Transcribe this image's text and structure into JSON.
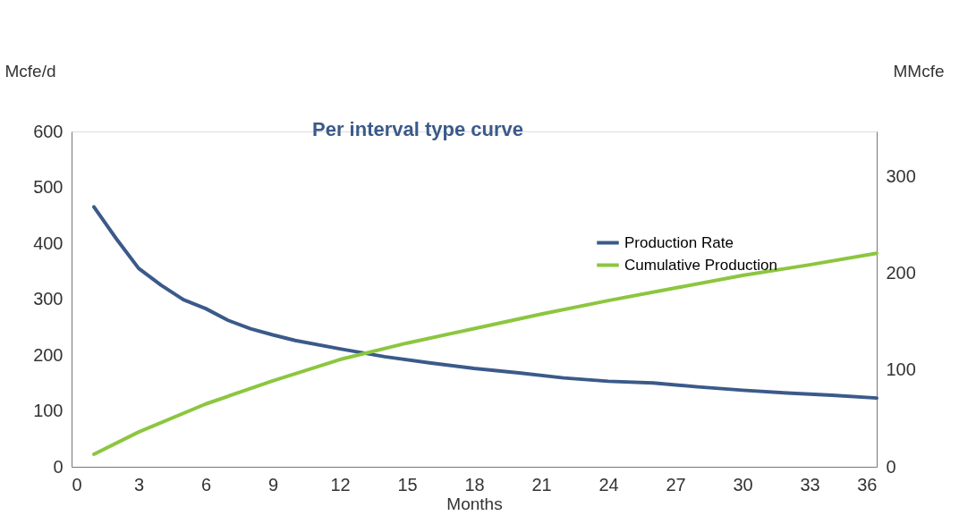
{
  "chart_data": {
    "type": "line",
    "title": "Per interval type curve",
    "xlabel": "Months",
    "ylabel": "Mcfe/d",
    "y2label": "MMcfe",
    "xlim": [
      0,
      36
    ],
    "xticks": [
      0,
      3,
      6,
      9,
      12,
      15,
      18,
      21,
      24,
      27,
      30,
      33,
      36
    ],
    "ylim": [
      0,
      600
    ],
    "yticks": [
      0,
      100,
      200,
      300,
      400,
      500,
      600
    ],
    "y2lim": [
      0,
      347
    ],
    "y2ticks": [
      0,
      100,
      200,
      300
    ],
    "legend": "top right",
    "grid": false,
    "marker": "none",
    "line_style": "solid",
    "series": [
      {
        "name": "Production Rate",
        "color": "#3b5a8a",
        "x": [
          1,
          2,
          3,
          4,
          5,
          6,
          7,
          8,
          9,
          10,
          12,
          14,
          16,
          18,
          20,
          22,
          24,
          26,
          28,
          30,
          32,
          34,
          36
        ],
        "values": [
          465,
          408,
          355,
          325,
          299,
          283,
          262,
          247,
          236,
          226,
          211,
          197,
          186,
          176,
          168,
          159,
          153,
          150,
          143,
          137,
          132,
          128,
          123
        ]
      },
      {
        "name": "Cumulative Production",
        "color": "#8cc63f",
        "axis": "y2",
        "x": [
          1,
          3,
          6,
          9,
          12,
          15,
          18,
          21,
          24,
          27,
          30,
          33,
          36
        ],
        "values": [
          13,
          36,
          65,
          89,
          111,
          128,
          143,
          158,
          172,
          185,
          198,
          209,
          221
        ]
      }
    ]
  }
}
